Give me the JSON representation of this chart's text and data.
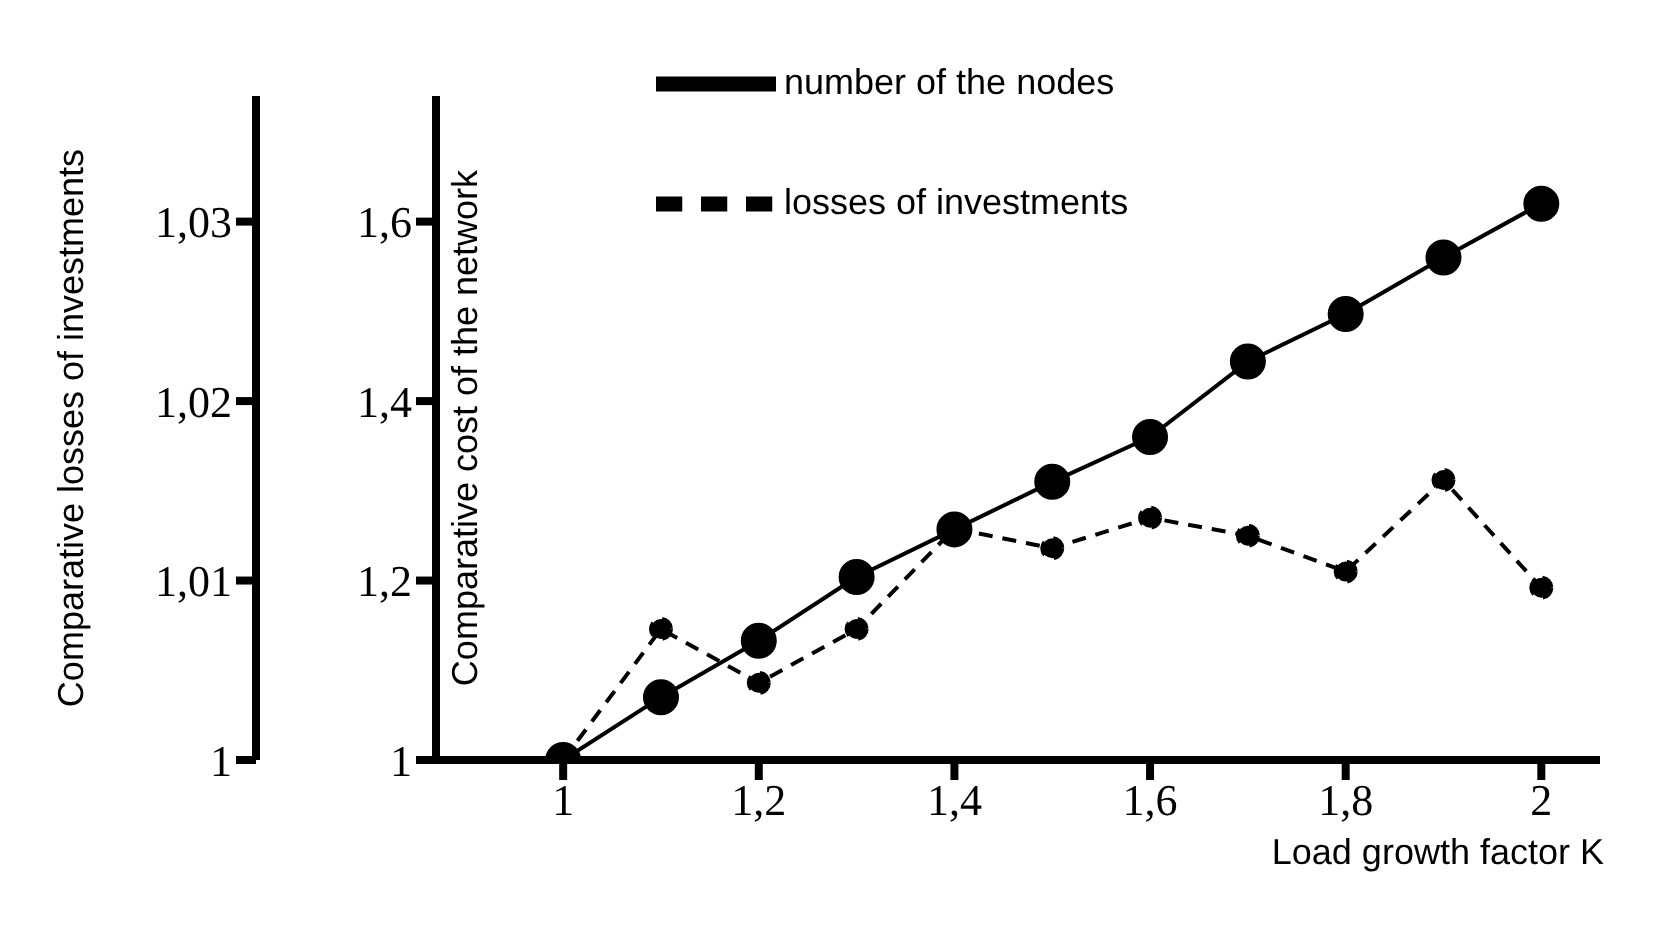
{
  "chart_data": {
    "type": "line",
    "xlabel": "Load growth factor K",
    "ylabel": "Comparative losses of investments",
    "y2label": "Comparative cost of the network",
    "x": [
      1,
      1.1,
      1.2,
      1.3,
      1.4,
      1.5,
      1.6,
      1.7,
      1.8,
      1.9,
      2
    ],
    "series": [
      {
        "name": "number of the nodes",
        "color": "#000000",
        "axis": "y2",
        "line_style": "solid",
        "values": [
          1,
          1.07,
          1.133,
          1.204,
          1.257,
          1.31,
          1.36,
          1.444,
          1.497,
          1.56,
          1.62
        ]
      },
      {
        "name": "losses of investments",
        "color": "#000000",
        "axis": "y",
        "line_style": "dashed",
        "values": [
          1,
          1.0073,
          1.0043,
          1.0073,
          1.0129,
          1.0118,
          1.0135,
          1.0125,
          1.0105,
          1.0156,
          1.0096
        ]
      }
    ],
    "xlim": [
      0.87,
      2.06
    ],
    "xticks": [
      1,
      {
        "value": 1.2,
        "label": "1,2"
      },
      {
        "value": 1.4,
        "label": "1,4"
      },
      {
        "value": 1.6,
        "label": "1,6"
      },
      {
        "value": 1.8,
        "label": "1,8"
      },
      2
    ],
    "ylim": [
      1,
      1.037
    ],
    "yticks": [
      1,
      {
        "value": 1.01,
        "label": "1,01"
      },
      {
        "value": 1.02,
        "label": "1,02"
      },
      {
        "value": 1.03,
        "label": "1,03"
      }
    ],
    "y2lim": [
      1,
      1.74
    ],
    "y2ticks": [
      1,
      {
        "value": 1.2,
        "label": "1,2"
      },
      {
        "value": 1.4,
        "label": "1,4"
      },
      {
        "value": 1.6,
        "label": "1,6"
      }
    ],
    "marker": "circle",
    "grid": false,
    "legend": "top"
  }
}
